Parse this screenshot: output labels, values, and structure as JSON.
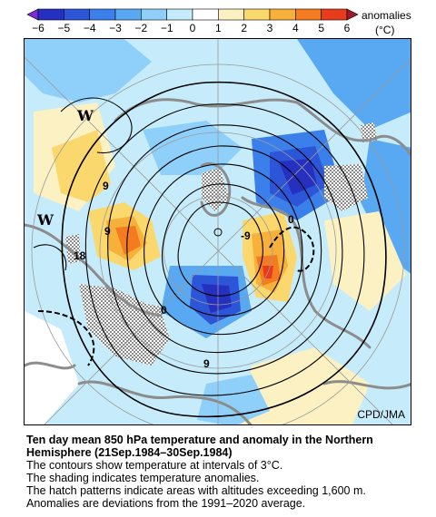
{
  "colorbar": {
    "title": "anomalies",
    "unit": "(°C)",
    "ticks": [
      "−6",
      "−5",
      "−4",
      "−3",
      "−2",
      "−1",
      "0",
      "1",
      "2",
      "3",
      "4",
      "5",
      "6"
    ],
    "colors": [
      "#2530c0",
      "#2c55d8",
      "#3b80ea",
      "#58a8f2",
      "#8fd0fa",
      "#c6ecfb",
      "#ffffff",
      "#fbf1c2",
      "#fbd86e",
      "#f7b13b",
      "#f47b20",
      "#e63b1c"
    ]
  },
  "map": {
    "credit": "CPD/JMA",
    "contour_labels": {
      "nine_upper_left": "9",
      "nine_mid": "9",
      "eighteen": "18",
      "zero_right": "0",
      "minus_nine": "-9",
      "nine_bottom": "9",
      "zero_lower": "0"
    },
    "highs_lows": {
      "w1": "W",
      "w2": "W"
    }
  },
  "caption": {
    "title": "Ten day mean 850 hPa temperature and anomaly in the Northern Hemisphere (21Sep.1984–30Sep.1984)",
    "line1": "The contours show temperature at intervals of 3°C.",
    "line2": "The shading indicates temperature anomalies.",
    "line3": "The hatch patterns indicate areas with altitudes exceeding 1,600 m.",
    "line4": "Anomalies are deviations from the 1991–2020 average."
  }
}
